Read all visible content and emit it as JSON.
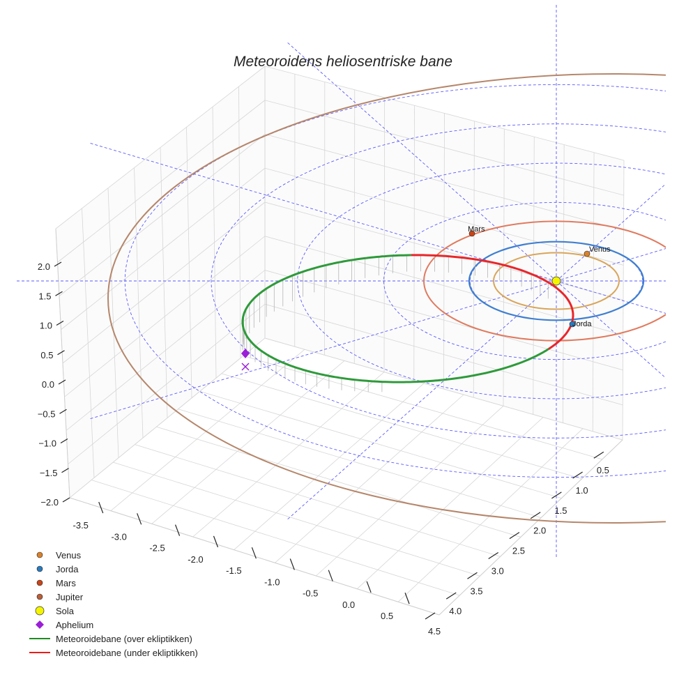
{
  "chart_data": {
    "type": "line",
    "title": "Meteoroidens heliosentriske bane",
    "x_ticks": [
      "-3.5",
      "-3.0",
      "-2.5",
      "-2.0",
      "-1.5",
      "-1.0",
      "-0.5",
      "0.0",
      "0.5"
    ],
    "y_ticks": [
      "0.5",
      "1.0",
      "1.5",
      "2.0",
      "2.5",
      "3.0",
      "3.5",
      "4.0",
      "4.5"
    ],
    "z_ticks": [
      "2.0",
      "1.5",
      "1.0",
      "0.5",
      "0.0",
      "−0.5",
      "−1.0",
      "−1.5",
      "−2.0"
    ],
    "xlim": [
      -3.6,
      0.6
    ],
    "ylim": [
      0.3,
      4.6
    ],
    "zlim": [
      -2.0,
      2.0
    ],
    "planet_labels": [
      "Mars",
      "Venus",
      "Jorda"
    ],
    "orbits": [
      {
        "name": "Venus",
        "radius_au": 0.72,
        "color": "#d9a55a"
      },
      {
        "name": "Jorda",
        "radius_au": 1.0,
        "color": "#3f7fd0"
      },
      {
        "name": "Mars",
        "radius_au": 1.52,
        "color": "#e07a5f"
      },
      {
        "name": "Jupiter",
        "radius_au": 5.2,
        "color": "#b5866a"
      }
    ],
    "series": [
      {
        "name": "Meteoroidebane (over ekliptikken)",
        "color": "#2e9a3a"
      },
      {
        "name": "Meteoroidebane (under ekliptikken)",
        "color": "#e8262a"
      }
    ],
    "legend": [
      {
        "label": "Venus",
        "symbol": "dot",
        "color": "#d9822b"
      },
      {
        "label": "Jorda",
        "symbol": "dot",
        "color": "#2b7bbd"
      },
      {
        "label": "Mars",
        "symbol": "dot",
        "color": "#c8451b"
      },
      {
        "label": "Jupiter",
        "symbol": "dot",
        "color": "#b8603a"
      },
      {
        "label": "Sola",
        "symbol": "sun",
        "color": "#f4f400"
      },
      {
        "label": "Aphelium",
        "symbol": "diamond",
        "color": "#9b1fd6"
      },
      {
        "label": "Meteoroidebane (over ekliptikken)",
        "symbol": "line",
        "color": "#1e8c1e"
      },
      {
        "label": "Meteoroidebane (under ekliptikken)",
        "symbol": "line",
        "color": "#e81c1c"
      }
    ],
    "legend_position": "bottom-left"
  }
}
